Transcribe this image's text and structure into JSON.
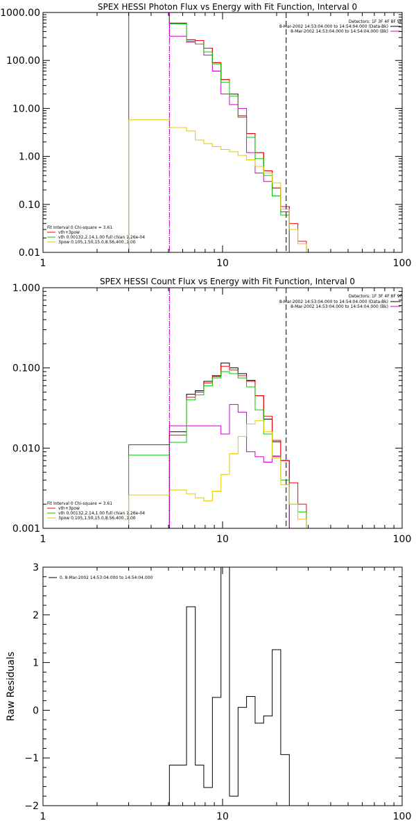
{
  "chart_data": [
    {
      "type": "line",
      "title": "SPEX HESSI Photon Flux vs Energy with Fit Function, Interval 0",
      "ylabel": "",
      "xlim": [
        1,
        100
      ],
      "ylim": [
        0.01,
        1000
      ],
      "xscale": "log",
      "yscale": "log",
      "x_ticks": [
        "1",
        "10",
        "100"
      ],
      "y_ticks": [
        "1000.00",
        "100.00",
        "10.00",
        "1.00",
        "0.10",
        "0.01"
      ],
      "detectors": "Detectors: 1F 3F 4F 8F 9F",
      "legend_top": [
        {
          "label": "8-Mar-2002 14:53:04.000 to 14:54:04.000 (Data-Bk)",
          "color": "#000000"
        },
        {
          "label": "8-Mar-2002 14:53:04.000 to 14:54:04.000 (Bk)",
          "color": "#cc00cc"
        }
      ],
      "legend_bottom": [
        {
          "label": "Fit Interval 0   Chi-square = 3.61",
          "color": ""
        },
        {
          "label": "vth+3pow",
          "color": "#ff0000"
        },
        {
          "label": "vth 0.00132,2.14,1.00  full chian 1.26e-04",
          "color": "#00cc00"
        },
        {
          "label": "3pow 0.105,1.50,15.0,8.56,400.,1.00",
          "color": "#e6c800"
        }
      ],
      "vlines": [
        {
          "x": 5.06,
          "style": "dotted",
          "color": "#000000"
        },
        {
          "x": 5.06,
          "style": "dashed",
          "color": "#cc00cc"
        },
        {
          "x": 22.6,
          "style": "dashed",
          "color": "#000000"
        }
      ],
      "edges": [
        3,
        5.06,
        6.3,
        7.05,
        7.86,
        8.78,
        9.8,
        10.93,
        12.2,
        13.6,
        15.18,
        16.94,
        18.9,
        21.08,
        23.54,
        26.26,
        29.3
      ],
      "series": [
        {
          "name": "Data-Bk",
          "color": "#000000",
          "values": [
            1000,
            600,
            270,
            260,
            180,
            90,
            40,
            20,
            7,
            3,
            1.2,
            0.5,
            0.22,
            0.09,
            null,
            null
          ]
        },
        {
          "name": "Bk",
          "color": "#cc00cc",
          "values": [
            1000,
            320,
            240,
            220,
            130,
            60,
            20,
            12,
            10,
            1.2,
            0.45,
            0.3,
            0.15,
            0.07,
            null,
            null
          ]
        },
        {
          "name": "vth+3pow",
          "color": "#ff0000",
          "values": [
            1000,
            600,
            270,
            260,
            180,
            90,
            40,
            20,
            7,
            3,
            1.2,
            0.5,
            0.22,
            0.09,
            0.04,
            0.017
          ]
        },
        {
          "name": "vth",
          "color": "#00cc00",
          "values": [
            1000,
            580,
            250,
            220,
            150,
            85,
            35,
            18,
            6.5,
            2.5,
            0.9,
            0.4,
            0.15,
            0.06,
            null,
            null
          ]
        },
        {
          "name": "3pow",
          "color": "#e6c800",
          "values": [
            5.8,
            4,
            3.4,
            2.2,
            1.85,
            1.6,
            1.4,
            1.25,
            1.05,
            0.85,
            0.62,
            0.45,
            0.28,
            0.08,
            0.03,
            0.015
          ]
        }
      ]
    },
    {
      "type": "line",
      "title": "SPEX HESSI Count Flux vs Energy with Fit Function, Interval 0",
      "ylabel": "",
      "xlim": [
        1,
        100
      ],
      "ylim": [
        0.001,
        1
      ],
      "xscale": "log",
      "yscale": "log",
      "x_ticks": [
        "1",
        "10",
        "100"
      ],
      "y_ticks": [
        "1.000",
        "0.100",
        "0.010",
        "0.001"
      ],
      "detectors": "Detectors: 1F 3F 4F 8F 9F",
      "legend_top": [
        {
          "label": "8-Mar-2002 14:53:04.000 to 14:54:04.000 (Data-Bk)",
          "color": "#000000"
        },
        {
          "label": "8-Mar-2002 14:53:04.000 to 14:54:04.000 (Bk)",
          "color": "#cc00cc"
        }
      ],
      "legend_bottom": [
        {
          "label": "Fit Interval 0   Chi-square = 3.61",
          "color": ""
        },
        {
          "label": "vth+3pow",
          "color": "#ff0000"
        },
        {
          "label": "vth 0.00132,2.14,1.00  full chian 1.26e-04",
          "color": "#00cc00"
        },
        {
          "label": "3pow 0.105,1.50,15.0,8.56,400.,1.00",
          "color": "#e6c800"
        }
      ],
      "vlines": [
        {
          "x": 5.06,
          "style": "dotted",
          "color": "#000000"
        },
        {
          "x": 5.06,
          "style": "dashed",
          "color": "#cc00cc"
        },
        {
          "x": 22.6,
          "style": "dashed",
          "color": "#000000"
        }
      ],
      "edges": [
        3,
        5.06,
        6.3,
        7.05,
        7.86,
        8.78,
        9.8,
        10.93,
        12.2,
        13.6,
        15.18,
        16.94,
        18.9,
        21.08,
        23.54,
        26.26,
        29.3
      ],
      "series": [
        {
          "name": "Data-Bk",
          "color": "#000000",
          "values": [
            null,
            0.016,
            0.047,
            0.052,
            0.068,
            0.08,
            0.115,
            0.1,
            0.085,
            0.07,
            0.045,
            0.023,
            0.012,
            0.007,
            null,
            null
          ]
        },
        {
          "name": "Bk",
          "color": "#cc00cc",
          "values": [
            null,
            0.019,
            0.019,
            0.019,
            0.019,
            0.019,
            0.015,
            0.035,
            0.028,
            0.009,
            0.0078,
            0.0067,
            0.0078,
            0.007,
            null,
            null
          ]
        },
        {
          "name": "vth+3pow",
          "color": "#ff0000",
          "values": [
            0.011,
            0.0145,
            0.043,
            0.05,
            0.065,
            0.078,
            0.105,
            0.094,
            0.08,
            0.068,
            0.045,
            0.025,
            0.0125,
            0.007,
            0.0037,
            0.002
          ]
        },
        {
          "name": "vth",
          "color": "#00cc00",
          "values": [
            0.0082,
            0.0118,
            0.04,
            0.046,
            0.06,
            0.075,
            0.09,
            0.085,
            0.075,
            0.058,
            0.03,
            0.015,
            0.008,
            0.004,
            0.002,
            0.0016
          ]
        },
        {
          "name": "3pow",
          "color": "#e6c800",
          "values": [
            0.0026,
            0.003,
            0.0027,
            0.0024,
            0.0022,
            0.0029,
            0.0047,
            0.0085,
            0.014,
            0.02,
            0.022,
            0.016,
            0.0075,
            0.0035,
            0.002,
            0.0013
          ]
        }
      ]
    },
    {
      "type": "line",
      "title": "",
      "ylabel": "Raw Residuals",
      "xlim": [
        1,
        100
      ],
      "ylim": [
        -2,
        3
      ],
      "xscale": "log",
      "yscale": "linear",
      "x_ticks": [
        "1",
        "10",
        "100"
      ],
      "y_ticks": [
        "3",
        "2",
        "1",
        "0",
        "−1",
        "−2"
      ],
      "legend_top": [
        {
          "label": "0. 8-Mar-2002 14:53:04.000 to 14:54:04.000",
          "color": "#000000"
        }
      ],
      "edges": [
        5.06,
        6.3,
        7.05,
        7.86,
        8.78,
        9.8,
        10.93,
        12.2,
        13.6,
        15.18,
        16.94,
        18.9,
        21.08,
        23.54
      ],
      "series": [
        {
          "name": "",
          "color": "#000000",
          "values": [
            -1.15,
            2.17,
            -1.15,
            -1.62,
            0.27,
            3.0,
            -1.8,
            0.06,
            0.29,
            -0.27,
            -0.12,
            1.27,
            -0.93
          ]
        }
      ]
    }
  ]
}
